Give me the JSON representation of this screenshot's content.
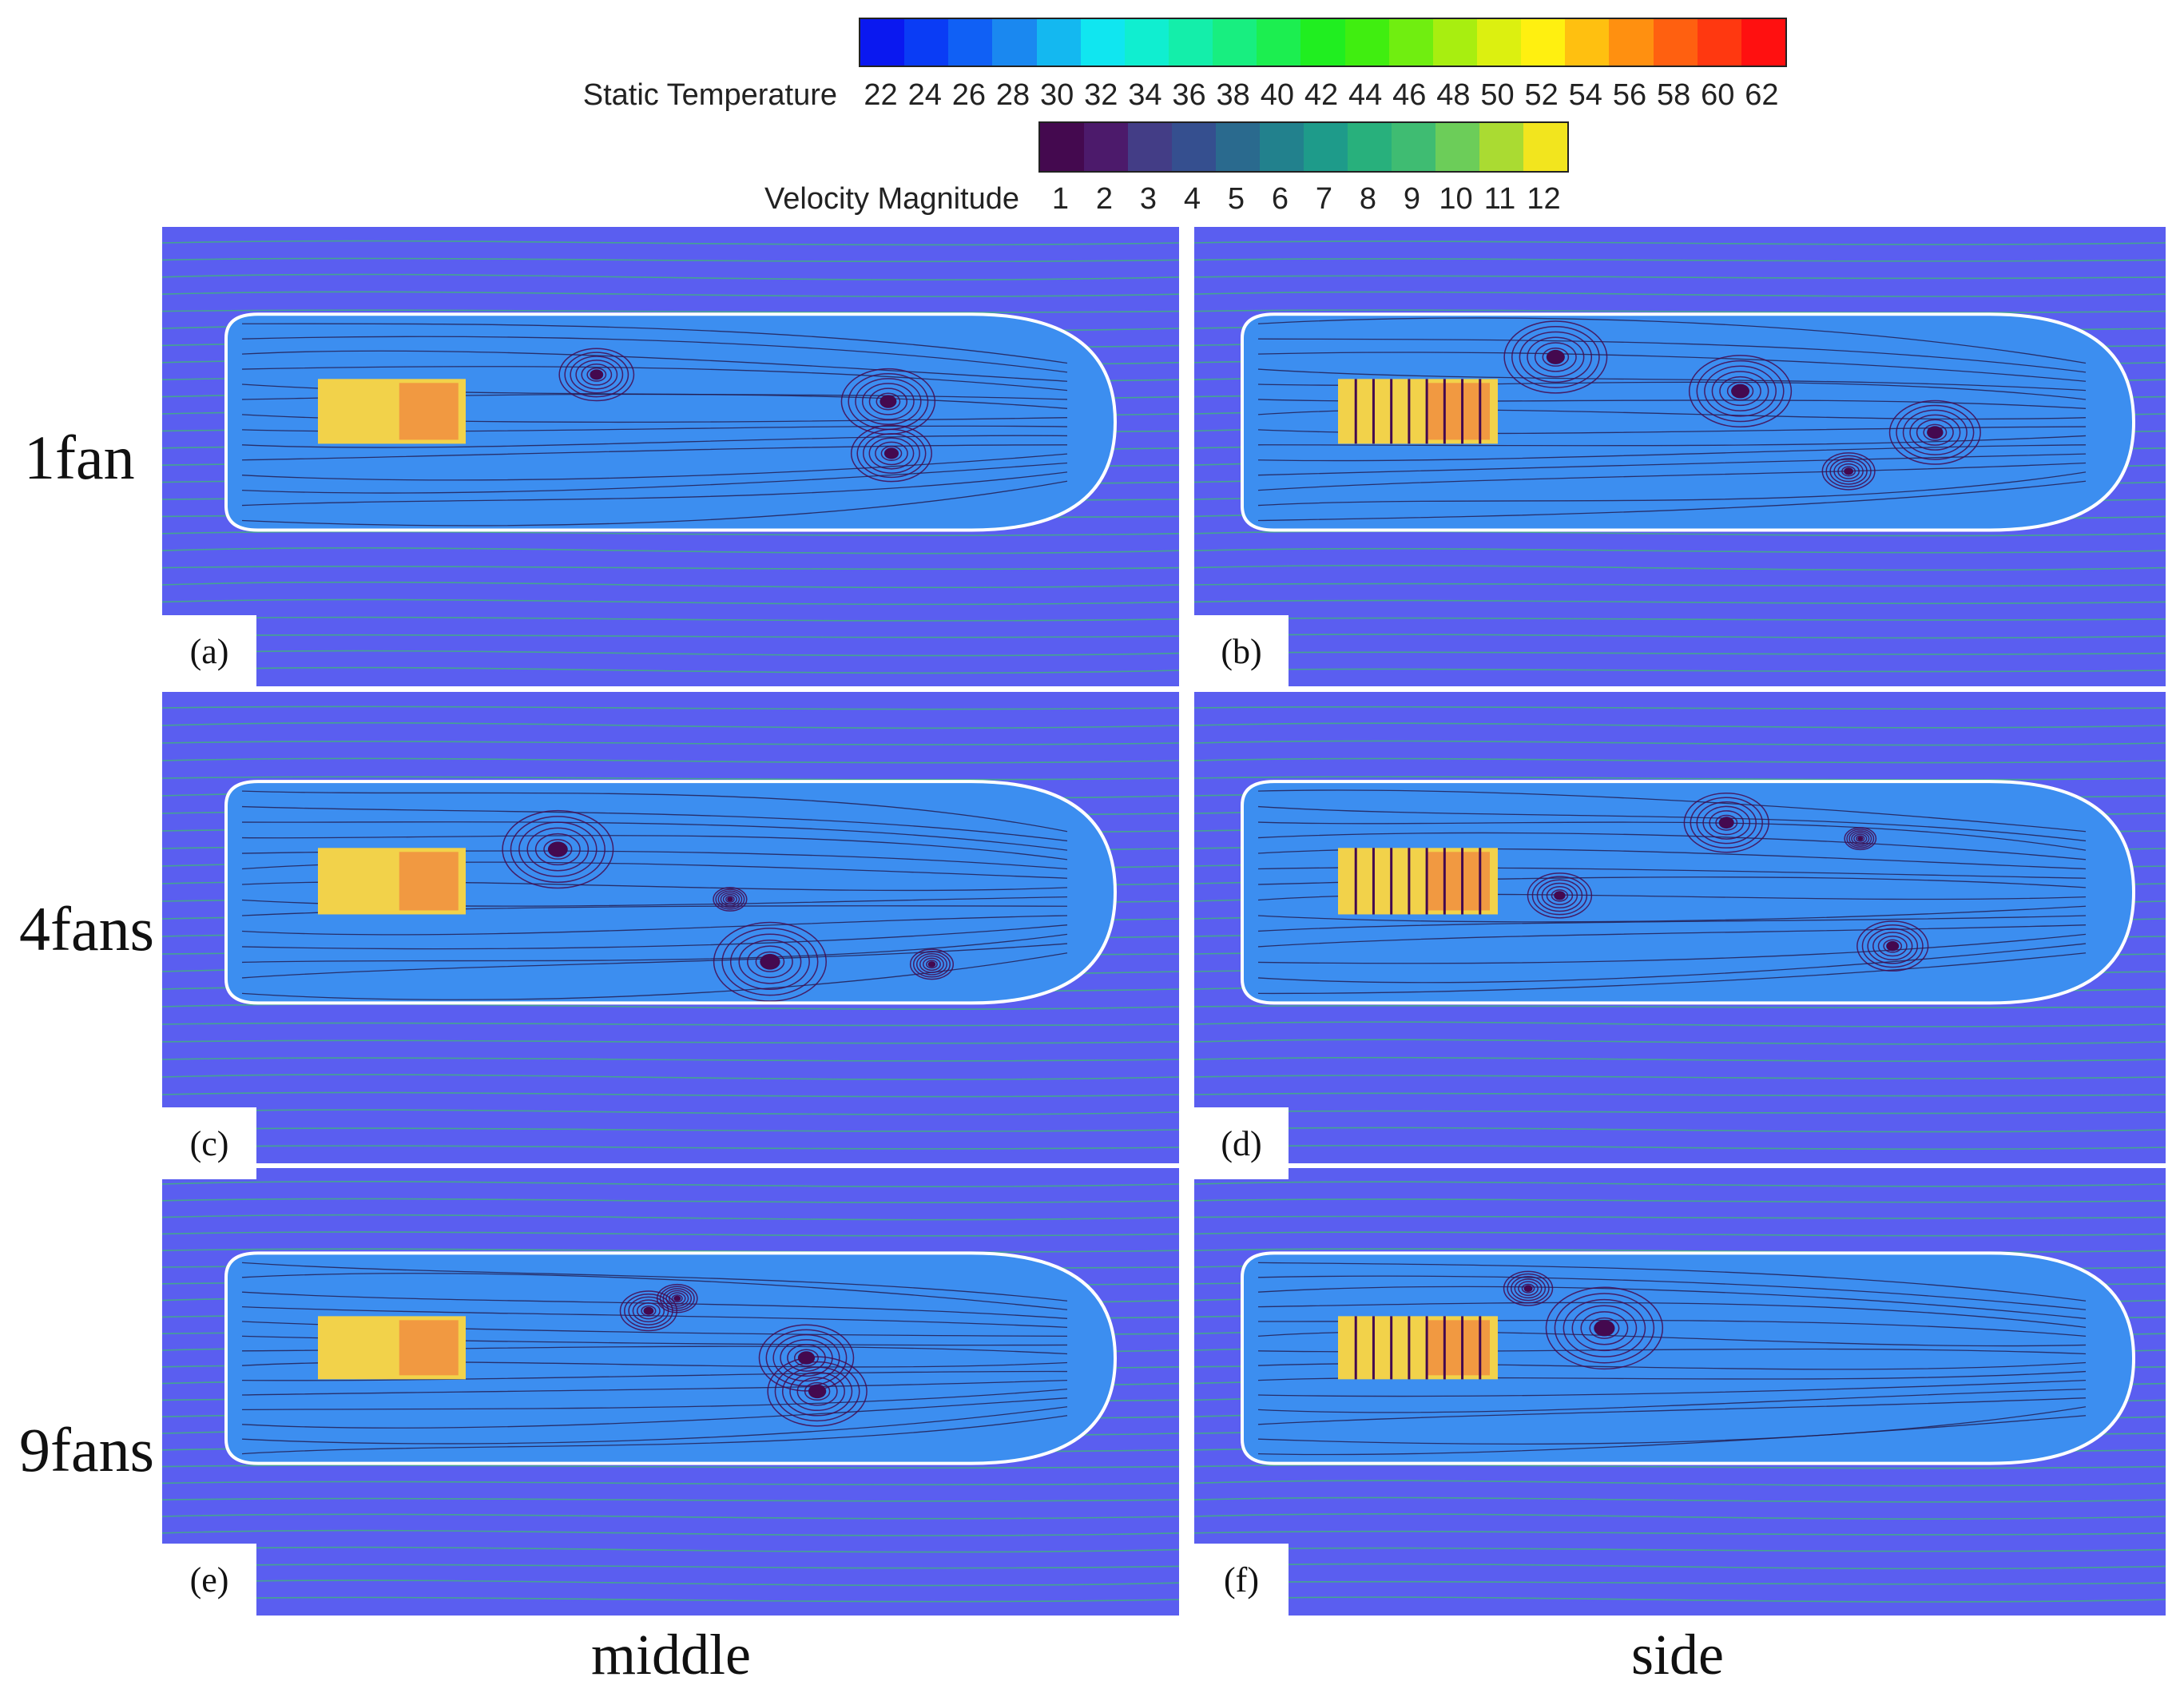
{
  "legend": {
    "temperature": {
      "title": "Static Temperature",
      "ticks": [
        "22",
        "24",
        "26",
        "28",
        "30",
        "32",
        "34",
        "36",
        "38",
        "40",
        "42",
        "44",
        "46",
        "48",
        "50",
        "52",
        "54",
        "56",
        "58",
        "60",
        "62"
      ],
      "colors": [
        "#0a18f0",
        "#0a3cf5",
        "#1060f5",
        "#1a88f0",
        "#14b8f0",
        "#10e6f0",
        "#10eed0",
        "#14eeaa",
        "#18ee80",
        "#1cee50",
        "#20ee20",
        "#40ee10",
        "#70ee10",
        "#a8ee10",
        "#dcf010",
        "#fff010",
        "#ffc010",
        "#ff9010",
        "#ff6010",
        "#ff3810",
        "#ff1010"
      ]
    },
    "velocity": {
      "title": "Velocity Magnitude",
      "ticks": [
        "1",
        "2",
        "3",
        "4",
        "5",
        "6",
        "7",
        "8",
        "9",
        "10",
        "11",
        "12"
      ],
      "colors": [
        "#44094f",
        "#4c1a6b",
        "#433d86",
        "#354f8f",
        "#2a6a8e",
        "#22818d",
        "#1e9b8a",
        "#28b07c",
        "#3fbc72",
        "#6ccd59",
        "#aadb32",
        "#f2e51e"
      ]
    }
  },
  "panels": {
    "a": "(a)",
    "b": "(b)",
    "c": "(c)",
    "d": "(d)",
    "e": "(e)",
    "f": "(f)"
  },
  "rows": [
    "1fan",
    "4fans",
    "9fans"
  ],
  "columns": [
    "middle",
    "side"
  ],
  "colors": {
    "background_air": "#5a5ef0",
    "interior_air": "#3c8ef0",
    "vortex_core": "#44094f",
    "heat_source": "#f2d24a",
    "hot_spot": "#f06a3a",
    "streamline_outside": "#3fbc72",
    "streamline_inside": "#22184a",
    "wall": "#ffffff"
  }
}
